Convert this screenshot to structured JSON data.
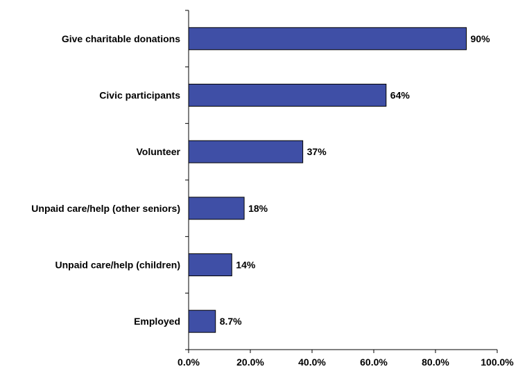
{
  "colors": {
    "bar_fill": "#3F4FA6",
    "bar_stroke": "#000000",
    "axis": "#000000",
    "background": "#FFFFFF"
  },
  "chart_data": {
    "type": "bar",
    "orientation": "horizontal",
    "title": "",
    "xlabel": "",
    "ylabel": "",
    "categories": [
      "Give charitable donations",
      "Civic participants",
      "Volunteer",
      "Unpaid care/help (other seniors)",
      "Unpaid care/help (children)",
      "Employed"
    ],
    "values": [
      90,
      64,
      37,
      18,
      14,
      8.7
    ],
    "value_labels": [
      "90%",
      "64%",
      "37%",
      "18%",
      "14%",
      "8.7%"
    ],
    "xlim": [
      0,
      100
    ],
    "x_ticks": [
      0,
      20,
      40,
      60,
      80,
      100
    ],
    "x_tick_labels": [
      "0.0%",
      "20.0%",
      "40.0%",
      "60.0%",
      "80.0%",
      "100.0%"
    ],
    "grid": false,
    "legend": "none"
  }
}
